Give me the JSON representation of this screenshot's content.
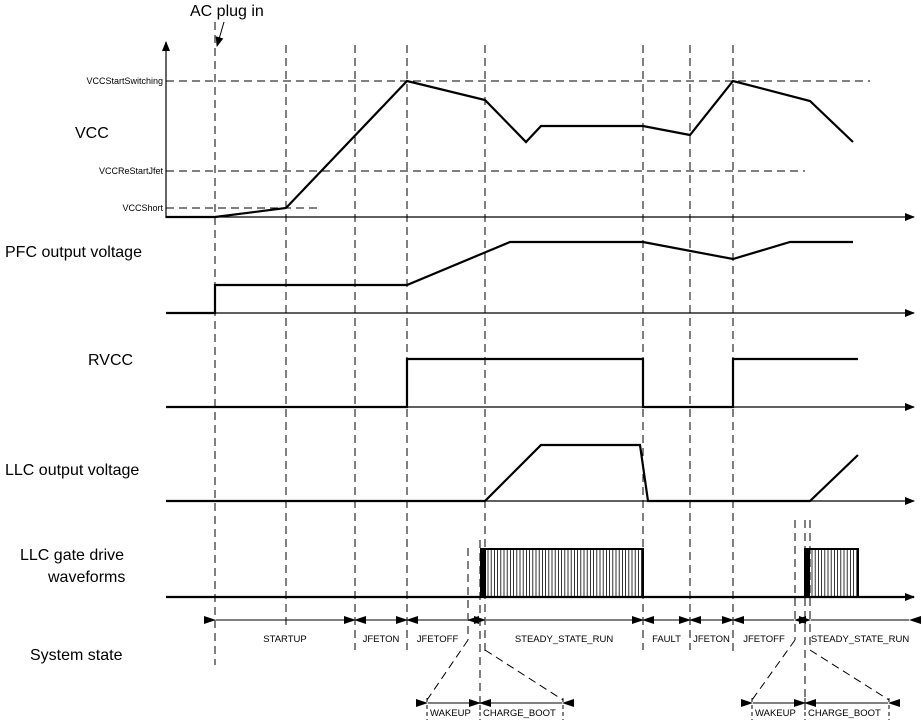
{
  "annotation": "AC plug in",
  "signals": {
    "vcc": "VCC",
    "pfc": "PFC output voltage",
    "rvcc": "RVCC",
    "llc": "LLC output voltage",
    "gate_1": "LLC gate drive",
    "gate_2": "waveforms",
    "state": "System state"
  },
  "levels": {
    "start_switching": "VCCStartSwitching",
    "restart_jfet": "VCCReStartJfet",
    "short": "VCCShort"
  },
  "states": [
    "STARTUP",
    "JFETON",
    "JFETOFF",
    "STEADY_STATE_RUN",
    "FAULT",
    "JFETON",
    "JFETOFF",
    "STEADY_STATE_RUN"
  ],
  "substates": [
    "WAKEUP",
    "CHARGE_BOOT",
    "WAKEUP",
    "CHARGE_BOOT"
  ]
}
